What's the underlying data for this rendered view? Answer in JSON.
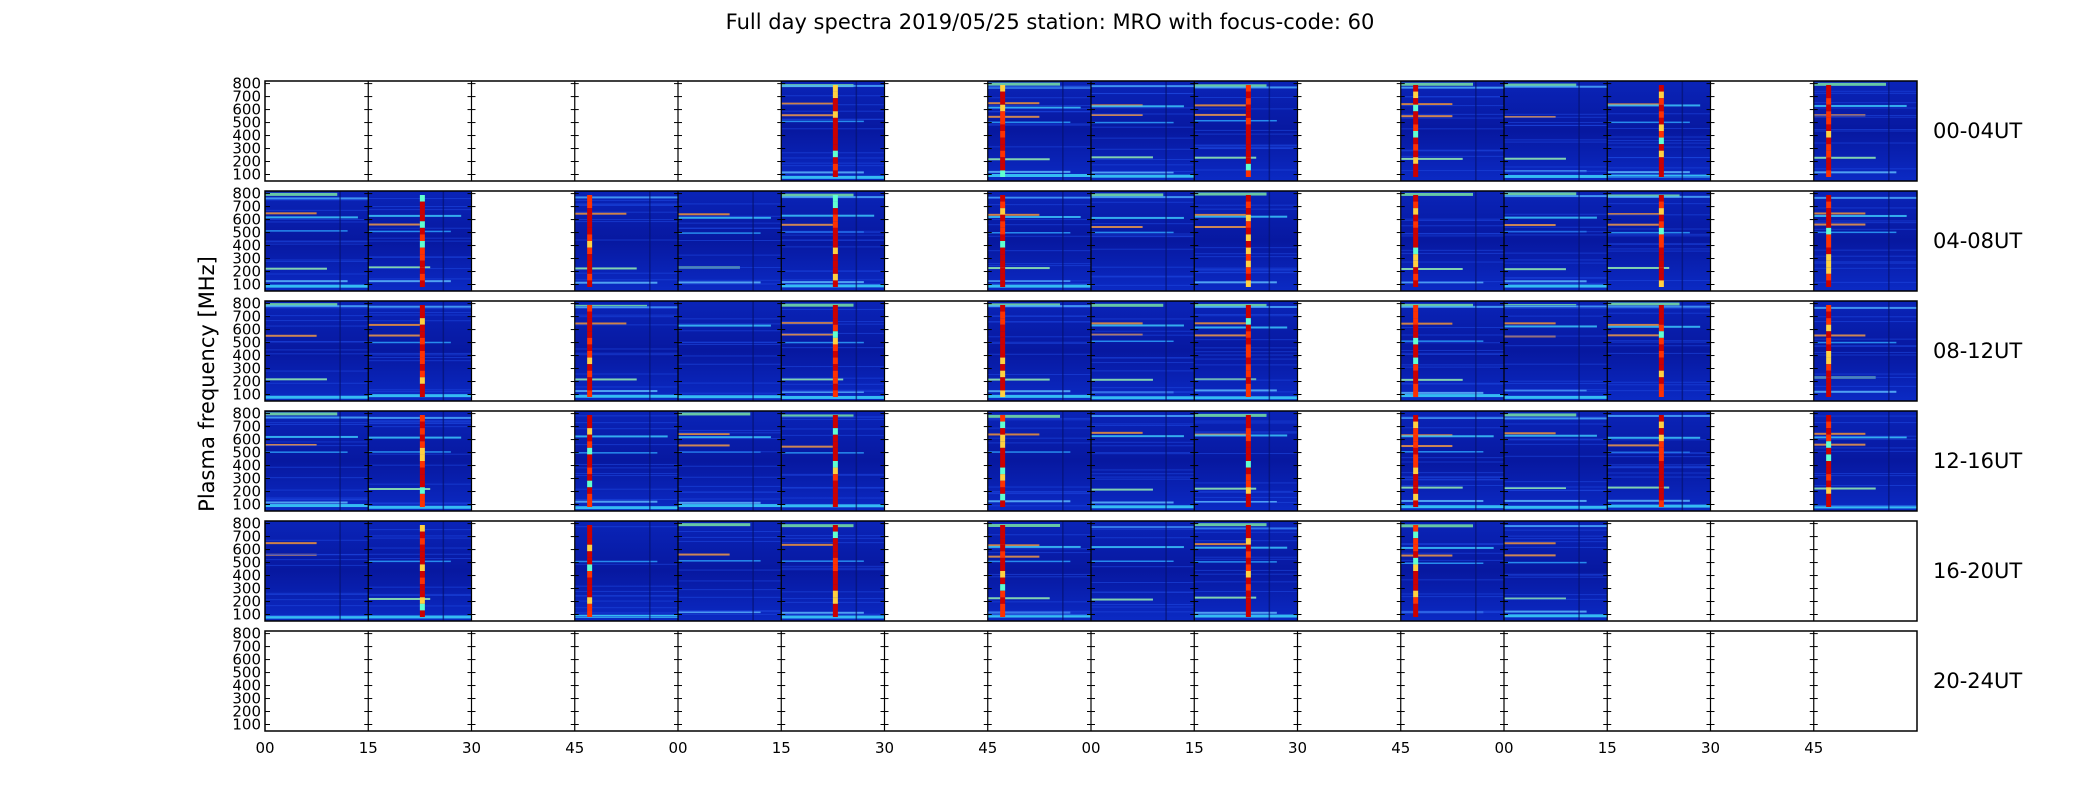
{
  "chart_data": {
    "type": "heatmap",
    "title": "Full day spectra 2019/05/25 station: MRO with focus-code: 60",
    "ylabel": "Plasma frequency [MHz]",
    "yticks": [
      100,
      200,
      300,
      400,
      500,
      600,
      700,
      800
    ],
    "ylim": [
      50,
      820
    ],
    "xtick_labels": [
      "00",
      "15",
      "30",
      "45",
      "00",
      "15",
      "30",
      "45",
      "00",
      "15",
      "30",
      "45",
      "00",
      "15",
      "30",
      "45"
    ],
    "segments_per_row": 16,
    "segment_minutes": 15,
    "colormap": "jet",
    "rows": [
      {
        "label": "00-04UT",
        "segments": [
          0,
          0,
          0,
          0,
          0,
          1,
          0,
          1,
          1,
          1,
          0,
          1,
          1,
          1,
          0,
          1
        ]
      },
      {
        "label": "04-08UT",
        "segments": [
          1,
          1,
          0,
          1,
          1,
          1,
          0,
          1,
          1,
          1,
          0,
          1,
          1,
          1,
          0,
          1
        ]
      },
      {
        "label": "08-12UT",
        "segments": [
          1,
          1,
          0,
          1,
          1,
          1,
          0,
          1,
          1,
          1,
          0,
          1,
          1,
          1,
          0,
          1
        ]
      },
      {
        "label": "12-16UT",
        "segments": [
          1,
          1,
          0,
          1,
          1,
          1,
          0,
          1,
          1,
          1,
          0,
          1,
          1,
          1,
          0,
          1
        ]
      },
      {
        "label": "16-20UT",
        "segments": [
          1,
          1,
          0,
          1,
          1,
          1,
          0,
          1,
          1,
          1,
          0,
          1,
          1,
          0,
          0,
          0
        ]
      },
      {
        "label": "20-24UT",
        "segments": [
          0,
          0,
          0,
          0,
          0,
          0,
          0,
          0,
          0,
          0,
          0,
          0,
          0,
          0,
          0,
          0
        ]
      }
    ]
  }
}
